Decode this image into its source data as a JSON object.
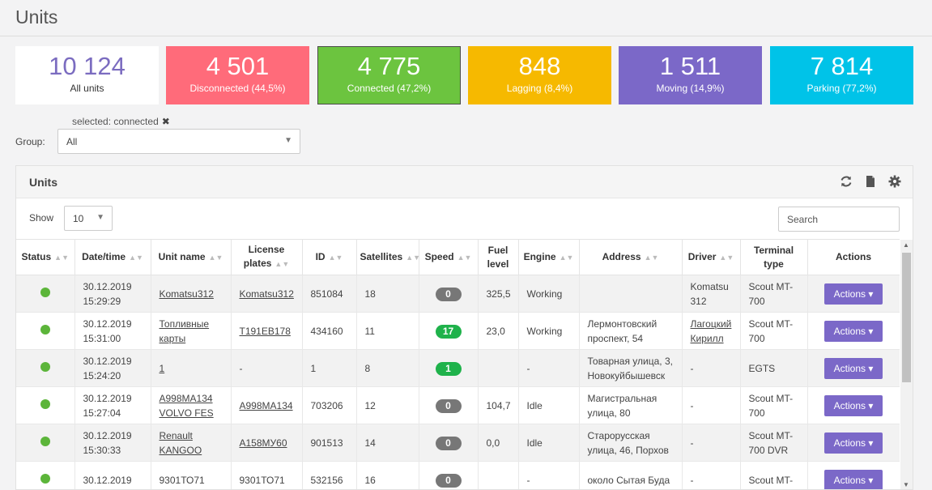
{
  "page": {
    "title": "Units"
  },
  "stats": [
    {
      "num": "10 124",
      "label": "All units",
      "color": "#ffffff"
    },
    {
      "num": "4 501",
      "label": "Disconnected (44,5%)",
      "color": "#ff6b7a"
    },
    {
      "num": "4 775",
      "label": "Connected (47,2%)",
      "color": "#6cc43f"
    },
    {
      "num": "848",
      "label": "Lagging (8,4%)",
      "color": "#f6b900"
    },
    {
      "num": "1 511",
      "label": "Moving (14,9%)",
      "color": "#7b68c8"
    },
    {
      "num": "7 814",
      "label": "Parking (77,2%)",
      "color": "#00c3e8"
    }
  ],
  "filter": {
    "selected_text": "selected: connected",
    "group_label": "Group:",
    "group_value": "All"
  },
  "panel": {
    "title": "Units",
    "icons": [
      "refresh-icon",
      "file-icon",
      "gear-icon"
    ],
    "show_label": "Show",
    "show_value": "10",
    "search_placeholder": "Search"
  },
  "table": {
    "columns": [
      "Status",
      "Date/time",
      "Unit name",
      "License plates",
      "ID",
      "Satellites",
      "Speed",
      "Fuel level",
      "Engine",
      "Address",
      "Driver",
      "Terminal type",
      "Actions"
    ],
    "rows": [
      {
        "date": "30.12.2019 15:29:29",
        "unit": "Komatsu312",
        "plates": "Komatsu312",
        "id": "851084",
        "sat": "18",
        "speed": "0",
        "fuel": "325,5",
        "engine": "Working",
        "address": "",
        "driver": "Komatsu 312",
        "terminal": "Scout MT-700",
        "action": "Actions"
      },
      {
        "date": "30.12.2019 15:31:00",
        "unit": "Топливные карты",
        "plates": "Т191ЕВ178",
        "id": "434160",
        "sat": "11",
        "speed": "17",
        "fuel": "23,0",
        "engine": "Working",
        "address": "Лермонтовский проспект, 54",
        "driver": "Лагоцкий Кирилл",
        "terminal": "Scout MT-700",
        "action": "Actions"
      },
      {
        "date": "30.12.2019 15:24:20",
        "unit": "1",
        "plates": "-",
        "id": "1",
        "sat": "8",
        "speed": "1",
        "fuel": "",
        "engine": "-",
        "address": "Товарная улица, 3, Новокуйбышевск",
        "driver": "-",
        "terminal": "EGTS",
        "action": "Actions"
      },
      {
        "date": "30.12.2019 15:27:04",
        "unit": "А998МА134 VOLVO FES",
        "plates": "А998МА134",
        "id": "703206",
        "sat": "12",
        "speed": "0",
        "fuel": "104,7",
        "engine": "Idle",
        "address": "Магистральная улица, 80",
        "driver": "-",
        "terminal": "Scout MT-700",
        "action": "Actions"
      },
      {
        "date": "30.12.2019 15:30:33",
        "unit": "Renault KANGOO",
        "plates": "А158МУ60",
        "id": "901513",
        "sat": "14",
        "speed": "0",
        "fuel": "0,0",
        "engine": "Idle",
        "address": "Старорусская улица, 46, Порхов",
        "driver": "-",
        "terminal": "Scout MT-700 DVR",
        "action": "Actions"
      },
      {
        "date": "30.12.2019",
        "unit": "9301ТО71",
        "plates": "9301ТО71",
        "id": "532156",
        "sat": "16",
        "speed": "0",
        "fuel": "",
        "engine": "-",
        "address": "около Сытая Буда",
        "driver": "-",
        "terminal": "Scout MT-",
        "action": "Actions"
      }
    ]
  },
  "colors": {
    "speed_stopped": "#777777",
    "speed_moving": "#1fb24b",
    "status_ok": "#5cb53a",
    "action_button": "#7b68c8"
  }
}
